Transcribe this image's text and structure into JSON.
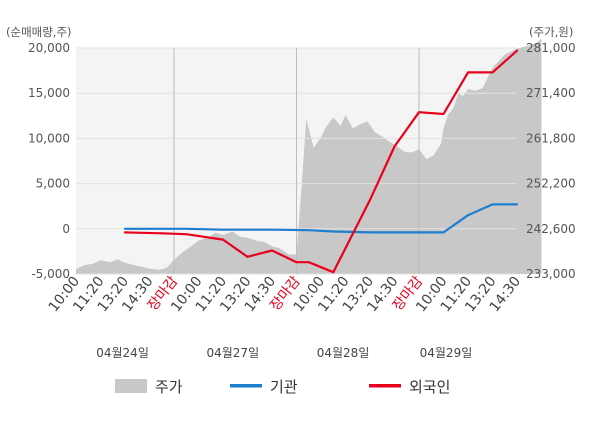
{
  "chart_data": {
    "type": "line",
    "left_axis": {
      "unit_label": "(순매매량,주)",
      "ticks": [
        "20,000",
        "15,000",
        "10,000",
        "5,000",
        "0",
        "-5,000"
      ],
      "tick_values": [
        20000,
        15000,
        10000,
        5000,
        0,
        -5000
      ],
      "ylim": [
        -5000,
        20000
      ]
    },
    "right_axis": {
      "unit_label": "(주가,원)",
      "ticks": [
        "281,000",
        "271,400",
        "261,800",
        "252,200",
        "242,600",
        "233,000"
      ],
      "tick_values": [
        281000,
        271400,
        261800,
        252200,
        242600,
        233000
      ],
      "ylim": [
        233000,
        281000
      ]
    },
    "x_ticks": [
      {
        "label": "10:00",
        "color": "#444444"
      },
      {
        "label": "11:20",
        "color": "#444444"
      },
      {
        "label": "13:20",
        "color": "#444444"
      },
      {
        "label": "14:30",
        "color": "#444444"
      },
      {
        "label": "장마감",
        "color": "#e8001c"
      },
      {
        "label": "10:00",
        "color": "#444444"
      },
      {
        "label": "11:20",
        "color": "#444444"
      },
      {
        "label": "13:20",
        "color": "#444444"
      },
      {
        "label": "14:30",
        "color": "#444444"
      },
      {
        "label": "장마감",
        "color": "#e8001c"
      },
      {
        "label": "10:00",
        "color": "#444444"
      },
      {
        "label": "11:20",
        "color": "#444444"
      },
      {
        "label": "13:20",
        "color": "#444444"
      },
      {
        "label": "14:30",
        "color": "#444444"
      },
      {
        "label": "장마감",
        "color": "#e8001c"
      },
      {
        "label": "10:00",
        "color": "#444444"
      },
      {
        "label": "11:20",
        "color": "#444444"
      },
      {
        "label": "13:20",
        "color": "#444444"
      },
      {
        "label": "14:30",
        "color": "#444444"
      }
    ],
    "dates": [
      "04월24일",
      "04월27일",
      "04월28일",
      "04월29일"
    ],
    "grid": true,
    "legend_position": "bottom",
    "series": [
      {
        "name": "주가",
        "kind": "area",
        "axis": "right",
        "color": "#c8c8c8",
        "x": [
          0,
          0.3,
          0.7,
          1.0,
          1.4,
          1.7,
          2.0,
          2.3,
          2.7,
          3.0,
          3.4,
          3.7,
          4.0,
          4.3,
          4.7,
          5.0,
          5.4,
          5.7,
          6.0,
          6.4,
          6.7,
          7.0,
          7.4,
          7.7,
          8.0,
          8.3,
          8.7,
          9.0,
          9.2,
          9.4,
          9.7,
          10.0,
          10.2,
          10.5,
          10.8,
          11.0,
          11.3,
          11.6,
          11.9,
          12.2,
          12.5,
          12.8,
          13.1,
          13.4,
          13.7,
          14.0,
          14.3,
          14.6,
          14.9,
          15.0,
          15.2,
          15.4,
          15.6,
          15.8,
          16.0,
          16.3,
          16.6,
          17.0,
          17.5,
          18.0,
          18.4,
          18.8,
          19.0
        ],
        "y": [
          234000,
          234800,
          235200,
          235900,
          235500,
          236100,
          235400,
          235000,
          234500,
          234100,
          233900,
          234300,
          236000,
          237400,
          238900,
          240100,
          240800,
          241800,
          241300,
          242000,
          240900,
          240700,
          240000,
          239800,
          238900,
          238500,
          237100,
          237200,
          251000,
          266000,
          259800,
          262000,
          264200,
          266300,
          264500,
          266800,
          263900,
          264800,
          265400,
          263100,
          262200,
          261100,
          260200,
          259000,
          258800,
          259500,
          257400,
          258200,
          260700,
          264000,
          267000,
          268200,
          271400,
          270800,
          272300,
          271900,
          272500,
          276800,
          279600,
          280900,
          281400,
          282100,
          283000
        ]
      },
      {
        "name": "기관",
        "kind": "line",
        "axis": "left",
        "color": "#1f7ed0",
        "x": [
          2.0,
          3.5,
          4.5,
          6.0,
          7.0,
          8.0,
          9.5,
          10.5,
          12.0,
          13.0,
          14.0,
          15.0,
          16.0,
          17.0,
          18.0
        ],
        "y": [
          0,
          0,
          0,
          -100,
          -100,
          -100,
          -150,
          -300,
          -400,
          -400,
          -400,
          -400,
          1500,
          2700,
          2700
        ]
      },
      {
        "name": "외국인",
        "kind": "line",
        "axis": "left",
        "color": "#e8001c",
        "x": [
          2.0,
          3.5,
          4.5,
          6.0,
          7.0,
          8.0,
          9.0,
          9.5,
          10.5,
          12.0,
          13.0,
          14.0,
          15.0,
          16.0,
          17.0,
          18.0
        ],
        "y": [
          -400,
          -500,
          -600,
          -1200,
          -3100,
          -2400,
          -3700,
          -3700,
          -4800,
          3200,
          9100,
          12900,
          12700,
          17300,
          17300,
          19700
        ]
      }
    ]
  }
}
